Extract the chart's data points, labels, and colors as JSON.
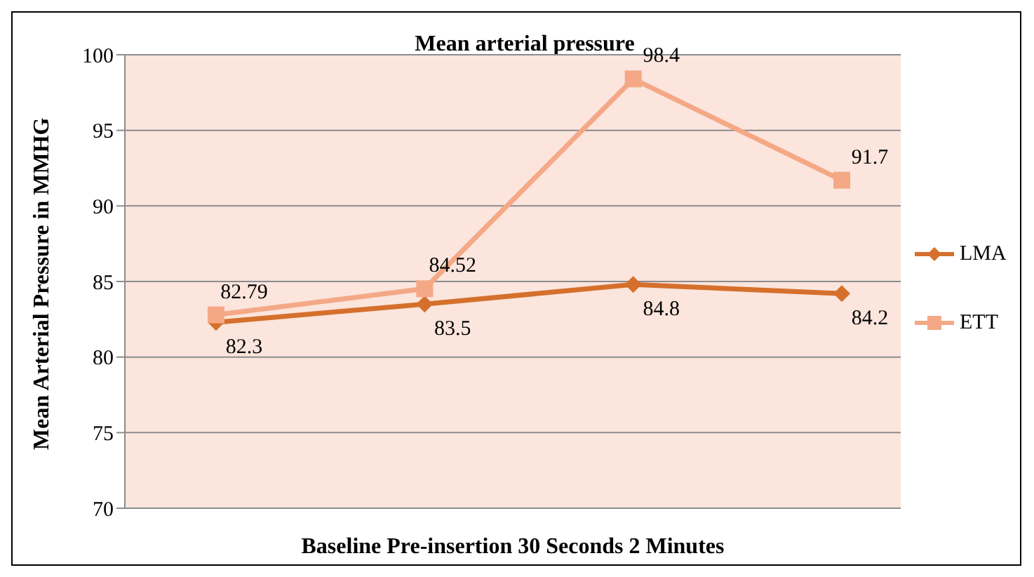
{
  "chart_data": {
    "type": "line",
    "title": "Mean arterial pressure",
    "xlabel": "Baseline Pre-insertion 30 Seconds 2 Minutes",
    "ylabel": "Mean Arterial Pressure in MMHG",
    "categories": [
      null,
      null,
      null,
      null
    ],
    "series": [
      {
        "name": "LMA",
        "color": "#d5702c",
        "marker": "diamond",
        "values": [
          82.3,
          83.5,
          84.8,
          84.2
        ]
      },
      {
        "name": "ETT",
        "color": "#f4a886",
        "marker": "square",
        "values": [
          82.79,
          84.52,
          98.4,
          91.7
        ]
      }
    ],
    "ylim": [
      70,
      100
    ],
    "yticks": [
      70,
      75,
      80,
      85,
      90,
      95,
      100
    ],
    "grid": "y",
    "legend": "right",
    "data_labels": true
  }
}
